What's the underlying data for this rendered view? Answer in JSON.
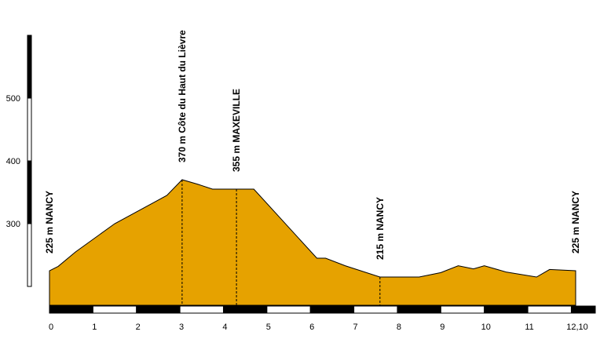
{
  "chart_data": {
    "type": "area",
    "title": "",
    "xlabel": "",
    "ylabel": "",
    "xlim": [
      0,
      12.1
    ],
    "ylim": [
      170,
      600
    ],
    "fill_color": "#E6A200",
    "stroke_color": "#000000",
    "x_ticks": [
      "0",
      "1",
      "2",
      "3",
      "4",
      "5",
      "6",
      "7",
      "8",
      "9",
      "10",
      "11",
      "12,10"
    ],
    "y_ticks": [
      "300",
      "400",
      "500"
    ],
    "x": [
      0,
      0.2,
      0.6,
      1.5,
      2.7,
      3.05,
      3.4,
      3.75,
      4.3,
      4.7,
      6.15,
      6.35,
      6.8,
      7.6,
      8.5,
      9.0,
      9.4,
      9.75,
      10.0,
      10.5,
      11.2,
      11.5,
      12.1
    ],
    "y": [
      225,
      232,
      255,
      300,
      345,
      370,
      363,
      355,
      355,
      355,
      245,
      245,
      233,
      215,
      215,
      222,
      233,
      228,
      233,
      223,
      215,
      227,
      225
    ],
    "labels": [
      {
        "x": 0,
        "elevation": 225,
        "text": "225 m NANCY"
      },
      {
        "x": 3.05,
        "elevation": 370,
        "text": "370 m Côte du Haut du Lièvre",
        "dashed": true
      },
      {
        "x": 4.3,
        "elevation": 355,
        "text": "355 m MAXEVILLE",
        "dashed": true
      },
      {
        "x": 7.6,
        "elevation": 215,
        "text": "215 m NANCY",
        "dashed": true
      },
      {
        "x": 12.1,
        "elevation": 225,
        "text": "225 m NANCY"
      }
    ]
  }
}
